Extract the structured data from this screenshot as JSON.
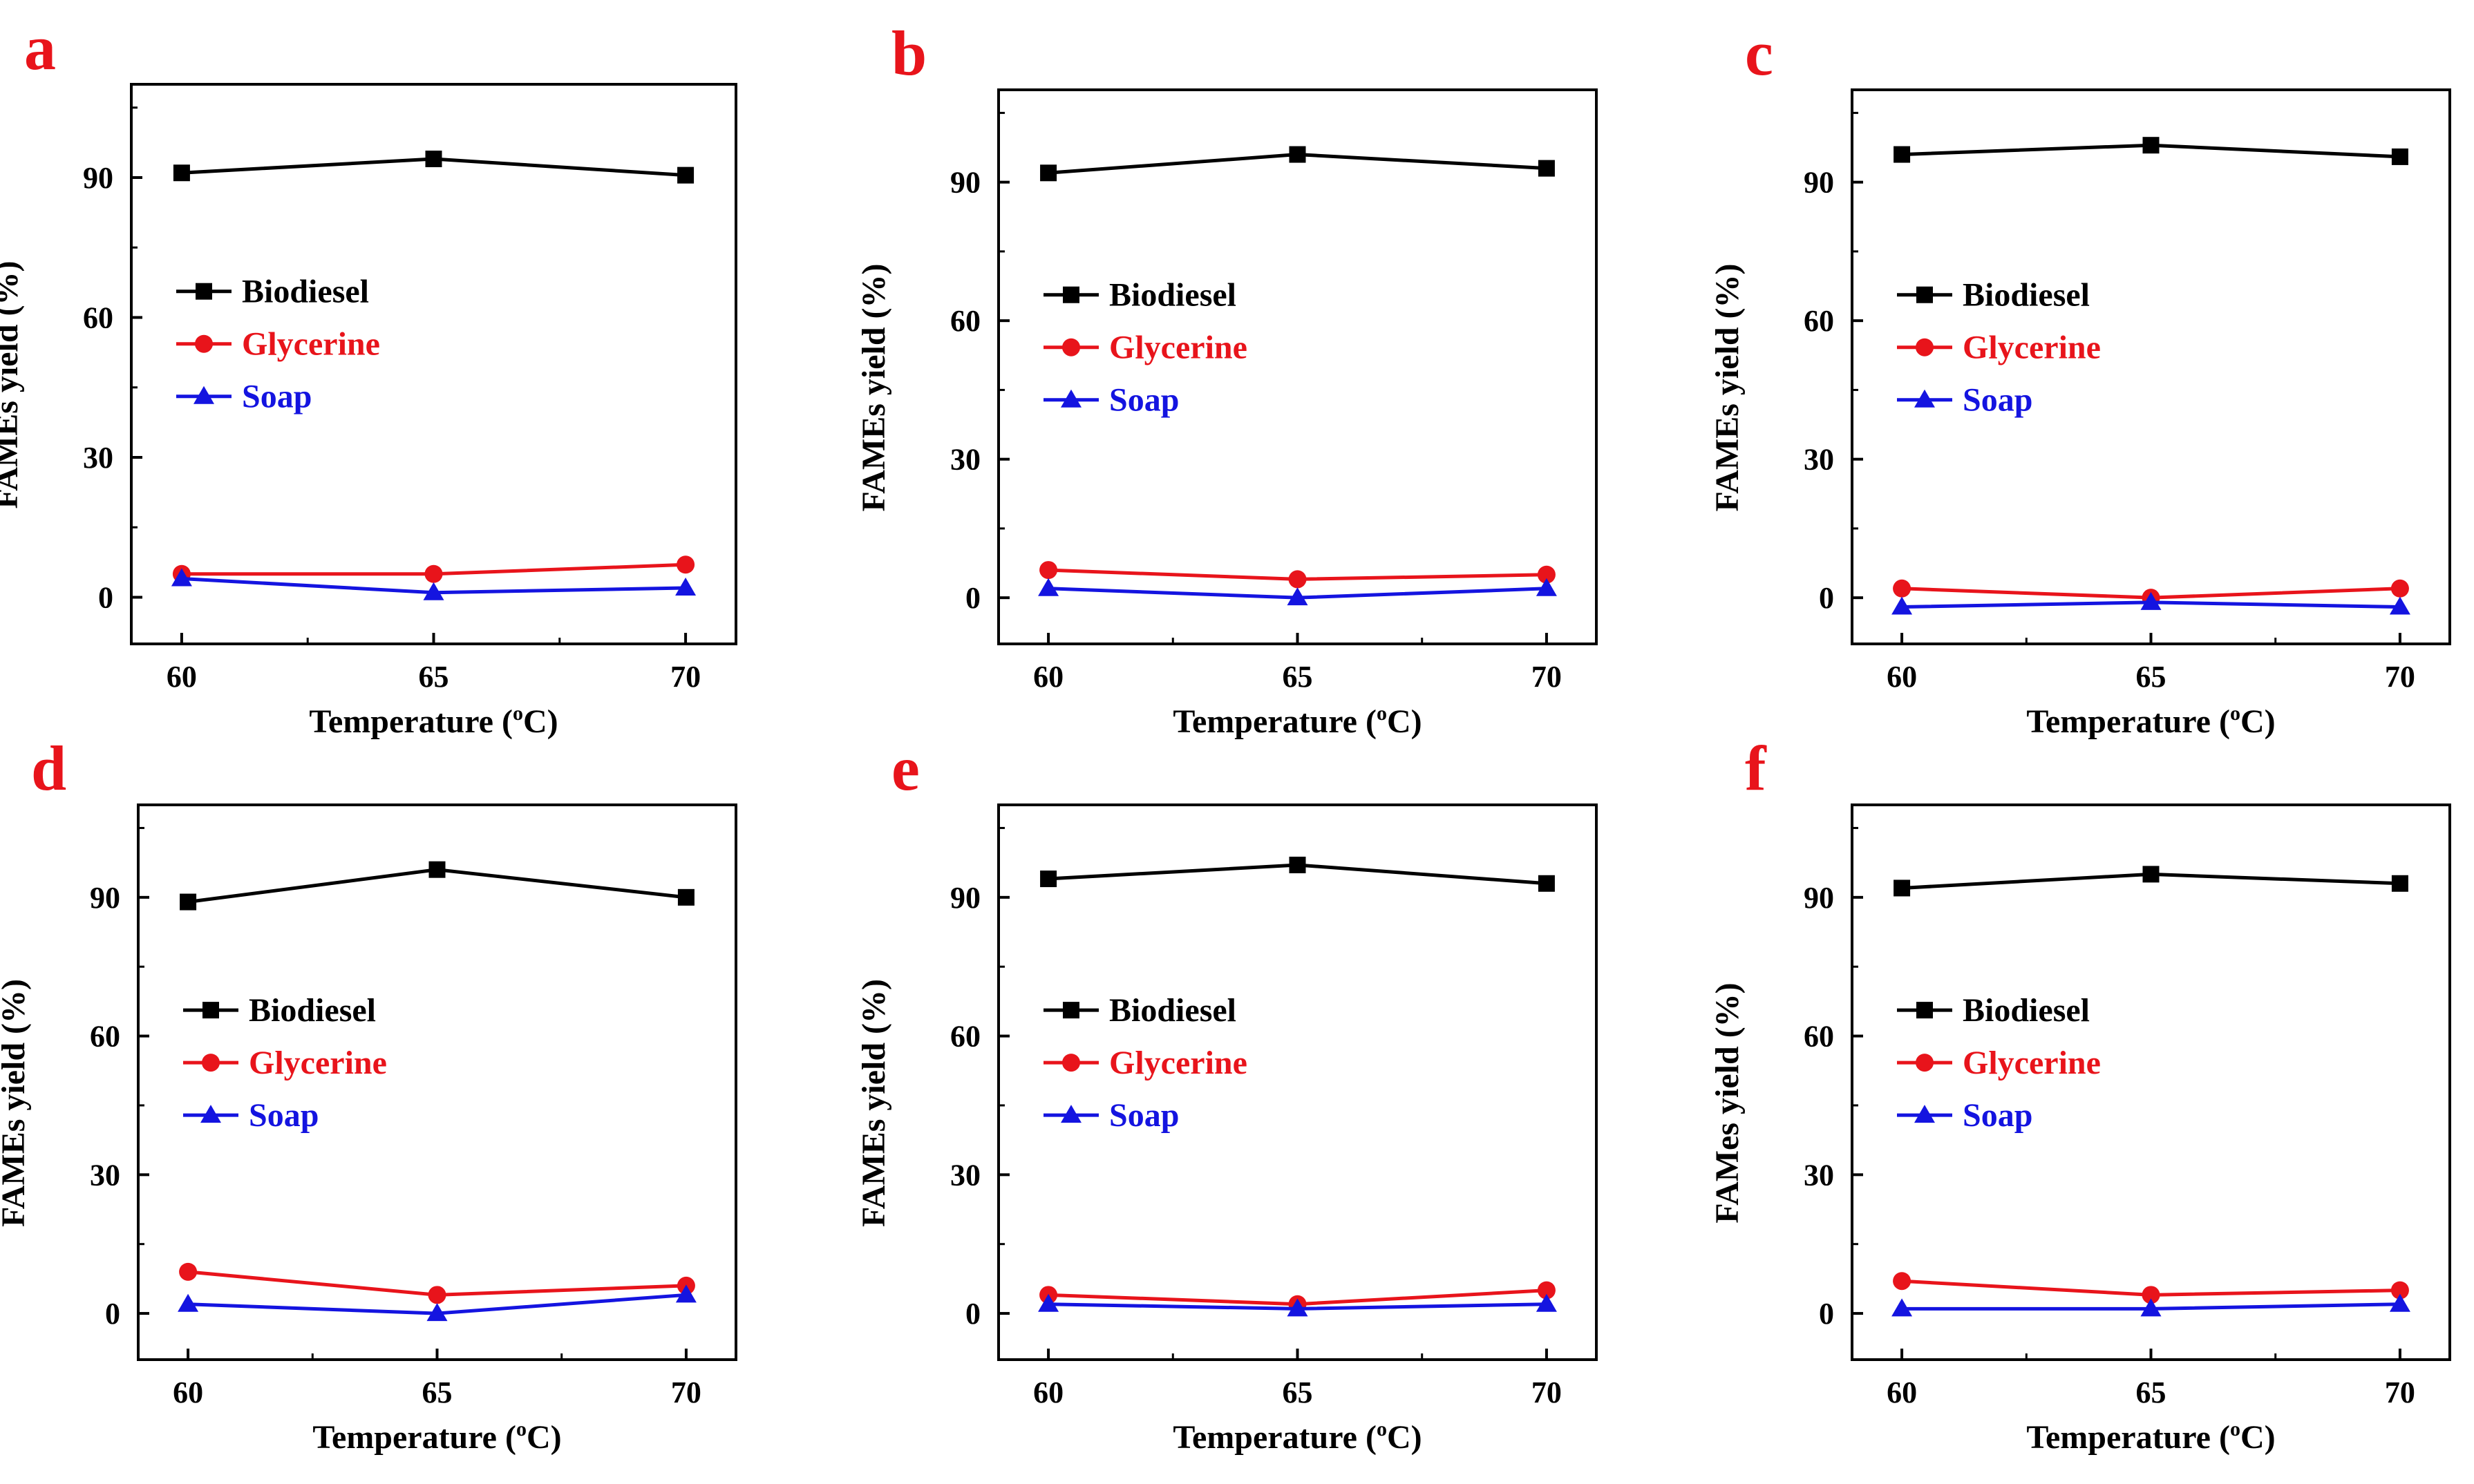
{
  "figure": {
    "colors": {
      "biodiesel": "#000000",
      "glycerine": "#e8141b",
      "soap": "#1414e0",
      "panel_letter": "#e8141b",
      "axis": "#000000"
    }
  },
  "chart_data": [
    {
      "panel": "a",
      "type": "line",
      "xlabel": "Temperature (oC)",
      "ylabel": "FAMEs yield (%)",
      "x": [
        60,
        65,
        70
      ],
      "xlim": [
        59,
        71
      ],
      "ylim": [
        -10,
        110
      ],
      "xticks": [
        "60",
        "65",
        "70"
      ],
      "yticks": [
        "0",
        "30",
        "60",
        "90"
      ],
      "legend": {
        "placement": "middle-left",
        "entries": [
          "Biodiesel",
          "Glycerine",
          "Soap"
        ]
      },
      "series": [
        {
          "name": "Biodiesel",
          "marker": "square",
          "values": [
            91,
            94,
            90.5
          ]
        },
        {
          "name": "Glycerine",
          "marker": "circle",
          "values": [
            5,
            5,
            7
          ]
        },
        {
          "name": "Soap",
          "marker": "triangle",
          "values": [
            4,
            1,
            2
          ]
        }
      ]
    },
    {
      "panel": "b",
      "type": "line",
      "xlabel": "Temperature (oC)",
      "ylabel": "FAMEs yield (%)",
      "x": [
        60,
        65,
        70
      ],
      "xlim": [
        59,
        71
      ],
      "ylim": [
        -10,
        110
      ],
      "xticks": [
        "60",
        "65",
        "70"
      ],
      "yticks": [
        "0",
        "30",
        "60",
        "90"
      ],
      "legend": {
        "placement": "middle-left",
        "entries": [
          "Biodiesel",
          "Glycerine",
          "Soap"
        ]
      },
      "series": [
        {
          "name": "Biodiesel",
          "marker": "square",
          "values": [
            92,
            96,
            93
          ]
        },
        {
          "name": "Glycerine",
          "marker": "circle",
          "values": [
            6,
            4,
            5
          ]
        },
        {
          "name": "Soap",
          "marker": "triangle",
          "values": [
            2,
            0,
            2
          ]
        }
      ]
    },
    {
      "panel": "c",
      "type": "line",
      "xlabel": "Temperature (oC)",
      "ylabel": "FAMEs yield (%)",
      "x": [
        60,
        65,
        70
      ],
      "xlim": [
        59,
        71
      ],
      "ylim": [
        -10,
        110
      ],
      "xticks": [
        "60",
        "65",
        "70"
      ],
      "yticks": [
        "0",
        "30",
        "60",
        "90"
      ],
      "legend": {
        "placement": "middle-left",
        "entries": [
          "Biodiesel",
          "Glycerine",
          "Soap"
        ]
      },
      "series": [
        {
          "name": "Biodiesel",
          "marker": "square",
          "values": [
            96,
            98,
            95.5
          ]
        },
        {
          "name": "Glycerine",
          "marker": "circle",
          "values": [
            2,
            0,
            2
          ]
        },
        {
          "name": "Soap",
          "marker": "triangle",
          "values": [
            -2,
            -1,
            -2
          ]
        }
      ]
    },
    {
      "panel": "d",
      "type": "line",
      "xlabel": "Temperature (oC)",
      "ylabel": "FAMEs yield (%)",
      "x": [
        60,
        65,
        70
      ],
      "xlim": [
        59,
        71
      ],
      "ylim": [
        -10,
        110
      ],
      "xticks": [
        "60",
        "65",
        "70"
      ],
      "yticks": [
        "0",
        "30",
        "60",
        "90"
      ],
      "legend": {
        "placement": "middle-left",
        "entries": [
          "Biodiesel",
          "Glycerine",
          "Soap"
        ]
      },
      "series": [
        {
          "name": "Biodiesel",
          "marker": "square",
          "values": [
            89,
            96,
            90
          ]
        },
        {
          "name": "Glycerine",
          "marker": "circle",
          "values": [
            9,
            4,
            6
          ]
        },
        {
          "name": "Soap",
          "marker": "triangle",
          "values": [
            2,
            0,
            4
          ]
        }
      ]
    },
    {
      "panel": "e",
      "type": "line",
      "xlabel": "Temperature (oC)",
      "ylabel": "FAMEs yield (%)",
      "x": [
        60,
        65,
        70
      ],
      "xlim": [
        59,
        71
      ],
      "ylim": [
        -10,
        110
      ],
      "xticks": [
        "60",
        "65",
        "70"
      ],
      "yticks": [
        "0",
        "30",
        "60",
        "90"
      ],
      "legend": {
        "placement": "middle-left",
        "entries": [
          "Biodiesel",
          "Glycerine",
          "Soap"
        ]
      },
      "series": [
        {
          "name": "Biodiesel",
          "marker": "square",
          "values": [
            94,
            97,
            93
          ]
        },
        {
          "name": "Glycerine",
          "marker": "circle",
          "values": [
            4,
            2,
            5
          ]
        },
        {
          "name": "Soap",
          "marker": "triangle",
          "values": [
            2,
            1,
            2
          ]
        }
      ]
    },
    {
      "panel": "f",
      "type": "line",
      "xlabel": "Temperature (oC)",
      "ylabel": "FAMes yield (%)",
      "x": [
        60,
        65,
        70
      ],
      "xlim": [
        59,
        71
      ],
      "ylim": [
        -10,
        110
      ],
      "xticks": [
        "60",
        "65",
        "70"
      ],
      "yticks": [
        "0",
        "30",
        "60",
        "90"
      ],
      "legend": {
        "placement": "middle-left",
        "entries": [
          "Biodiesel",
          "Glycerine",
          "Soap"
        ]
      },
      "series": [
        {
          "name": "Biodiesel",
          "marker": "square",
          "values": [
            92,
            95,
            93
          ]
        },
        {
          "name": "Glycerine",
          "marker": "circle",
          "values": [
            7,
            4,
            5
          ]
        },
        {
          "name": "Soap",
          "marker": "triangle",
          "values": [
            1,
            1,
            2
          ]
        }
      ]
    }
  ]
}
